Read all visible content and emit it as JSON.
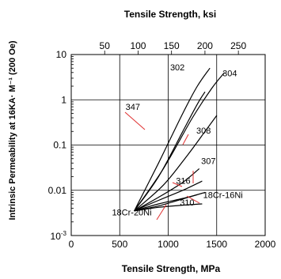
{
  "chart_data": {
    "type": "line",
    "title": "Tensile Strength, ksi",
    "xlabel": "Tensile Strength, MPa",
    "ylabel": "Intrinsic Permeability at 16KA· M⁻¹ (200 Oe)",
    "x_unit": "MPa",
    "xlim": [
      0,
      2000
    ],
    "x_ticks": [
      0,
      500,
      1000,
      1500,
      2000
    ],
    "x_tick_labels": [
      "0",
      "500",
      "1000",
      "1500",
      "2000"
    ],
    "top_axis": {
      "unit": "ksi",
      "ticks": [
        50,
        100,
        150,
        200,
        250
      ],
      "tick_labels": [
        "50",
        "100",
        "150",
        "200",
        "250"
      ]
    },
    "y_scale": "log",
    "ylim": [
      0.001,
      10
    ],
    "y_ticks": [
      10,
      1,
      0.1,
      0.01
    ],
    "y_tick_labels": [
      "10",
      "1",
      "0.1",
      "0.01"
    ],
    "y_min_label_base": "10",
    "y_min_label_exp": "-3",
    "grid": true,
    "series": [
      {
        "name": "302",
        "x": [
          650,
          900,
          1150,
          1300,
          1430
        ],
        "y": [
          0.0035,
          0.04,
          0.5,
          2.0,
          5.0
        ]
      },
      {
        "name": "304",
        "x": [
          650,
          950,
          1250,
          1450,
          1580
        ],
        "y": [
          0.0035,
          0.03,
          0.4,
          1.8,
          4.0
        ]
      },
      {
        "name": "347",
        "x": [
          650,
          900,
          1150,
          1300,
          1380
        ],
        "y": [
          0.0035,
          0.02,
          0.2,
          0.8,
          1.5
        ]
      },
      {
        "name": "308",
        "x": [
          650,
          950,
          1200,
          1380,
          1500
        ],
        "y": [
          0.0035,
          0.013,
          0.06,
          0.2,
          0.45
        ]
      },
      {
        "name": "316",
        "x": [
          650,
          900,
          1150,
          1320
        ],
        "y": [
          0.0035,
          0.007,
          0.015,
          0.03
        ]
      },
      {
        "name": "307",
        "x": [
          650,
          900,
          1150,
          1350
        ],
        "y": [
          0.0035,
          0.006,
          0.01,
          0.016
        ]
      },
      {
        "name": "18Cr-16Ni",
        "x": [
          650,
          900,
          1200,
          1380
        ],
        "y": [
          0.0035,
          0.005,
          0.007,
          0.009
        ]
      },
      {
        "name": "310",
        "x": [
          650,
          900,
          1100,
          1350
        ],
        "y": [
          0.0035,
          0.0042,
          0.0046,
          0.005
        ]
      },
      {
        "name": "18Cr-20Ni",
        "x": [
          650,
          900,
          1100,
          1300
        ],
        "y": [
          0.0035,
          0.0045,
          0.006,
          0.008
        ]
      }
    ],
    "annotations": [
      {
        "text": "302",
        "x": 1020,
        "y": 4.5
      },
      {
        "text": "304",
        "x": 1560,
        "y": 3.3
      },
      {
        "text": "347",
        "x": 560,
        "y": 0.6
      },
      {
        "text": "308",
        "x": 1290,
        "y": 0.18
      },
      {
        "text": "307",
        "x": 1340,
        "y": 0.038
      },
      {
        "text": "316",
        "x": 1080,
        "y": 0.014
      },
      {
        "text": "18Cr-16Ni",
        "x": 1360,
        "y": 0.0068
      },
      {
        "text": "310",
        "x": 1120,
        "y": 0.0046
      },
      {
        "text": "18Cr-20Ni",
        "x": 420,
        "y": 0.0028
      }
    ]
  }
}
